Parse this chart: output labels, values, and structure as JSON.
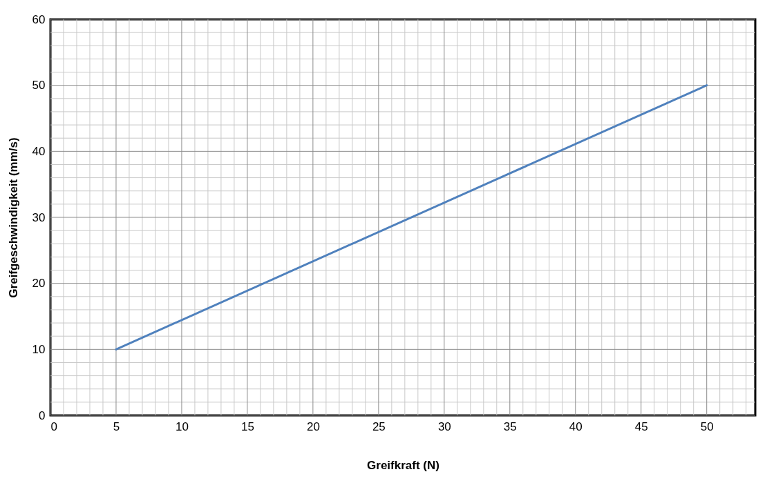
{
  "chart_data": {
    "type": "line",
    "xlabel": "Greifkraft (N)",
    "ylabel": "Greifgeschwindigkeit (mm/s)",
    "x": [
      5,
      50
    ],
    "series": [
      {
        "color": "#4f81bd",
        "values": [
          10,
          50
        ]
      }
    ],
    "xlim": [
      0,
      53.7
    ],
    "ylim": [
      0,
      60
    ],
    "xticks": [
      0,
      {
        "value": 1,
        "label": null
      },
      {
        "value": 2,
        "label": null
      },
      {
        "value": 3,
        "label": null
      },
      {
        "value": 4,
        "label": null
      },
      5,
      {
        "value": 6,
        "label": null
      },
      {
        "value": 7,
        "label": null
      },
      {
        "value": 8,
        "label": null
      },
      {
        "value": 9,
        "label": null
      },
      10,
      {
        "value": 11,
        "label": null
      },
      {
        "value": 12,
        "label": null
      },
      {
        "value": 13,
        "label": null
      },
      {
        "value": 14,
        "label": null
      },
      15,
      {
        "value": 16,
        "label": null
      },
      {
        "value": 17,
        "label": null
      },
      {
        "value": 18,
        "label": null
      },
      {
        "value": 19,
        "label": null
      },
      20,
      {
        "value": 21,
        "label": null
      },
      {
        "value": 22,
        "label": null
      },
      {
        "value": 23,
        "label": null
      },
      {
        "value": 24,
        "label": null
      },
      25,
      {
        "value": 26,
        "label": null
      },
      {
        "value": 27,
        "label": null
      },
      {
        "value": 28,
        "label": null
      },
      {
        "value": 29,
        "label": null
      },
      30,
      {
        "value": 31,
        "label": null
      },
      {
        "value": 32,
        "label": null
      },
      {
        "value": 33,
        "label": null
      },
      {
        "value": 34,
        "label": null
      },
      35,
      {
        "value": 36,
        "label": null
      },
      {
        "value": 37,
        "label": null
      },
      {
        "value": 38,
        "label": null
      },
      {
        "value": 39,
        "label": null
      },
      40,
      {
        "value": 41,
        "label": null
      },
      {
        "value": 42,
        "label": null
      },
      {
        "value": 43,
        "label": null
      },
      {
        "value": 44,
        "label": null
      },
      45,
      {
        "value": 46,
        "label": null
      },
      {
        "value": 47,
        "label": null
      },
      {
        "value": 48,
        "label": null
      },
      {
        "value": 49,
        "label": null
      },
      50,
      {
        "value": 51,
        "label": null
      },
      {
        "value": 52,
        "label": null
      },
      {
        "value": 53,
        "label": null
      }
    ],
    "yticks": [
      0,
      {
        "value": 2,
        "label": null
      },
      {
        "value": 4,
        "label": null
      },
      {
        "value": 6,
        "label": null
      },
      {
        "value": 8,
        "label": null
      },
      10,
      {
        "value": 12,
        "label": null
      },
      {
        "value": 14,
        "label": null
      },
      {
        "value": 16,
        "label": null
      },
      {
        "value": 18,
        "label": null
      },
      20,
      {
        "value": 22,
        "label": null
      },
      {
        "value": 24,
        "label": null
      },
      {
        "value": 26,
        "label": null
      },
      {
        "value": 28,
        "label": null
      },
      30,
      {
        "value": 32,
        "label": null
      },
      {
        "value": 34,
        "label": null
      },
      {
        "value": 36,
        "label": null
      },
      {
        "value": 38,
        "label": null
      },
      40,
      {
        "value": 42,
        "label": null
      },
      {
        "value": 44,
        "label": null
      },
      {
        "value": 46,
        "label": null
      },
      {
        "value": 48,
        "label": null
      },
      50,
      {
        "value": 52,
        "label": null
      },
      {
        "value": 54,
        "label": null
      },
      {
        "value": 56,
        "label": null
      },
      {
        "value": 58,
        "label": null
      },
      60
    ],
    "grid": true,
    "marker": "none",
    "line_style": "solid"
  }
}
